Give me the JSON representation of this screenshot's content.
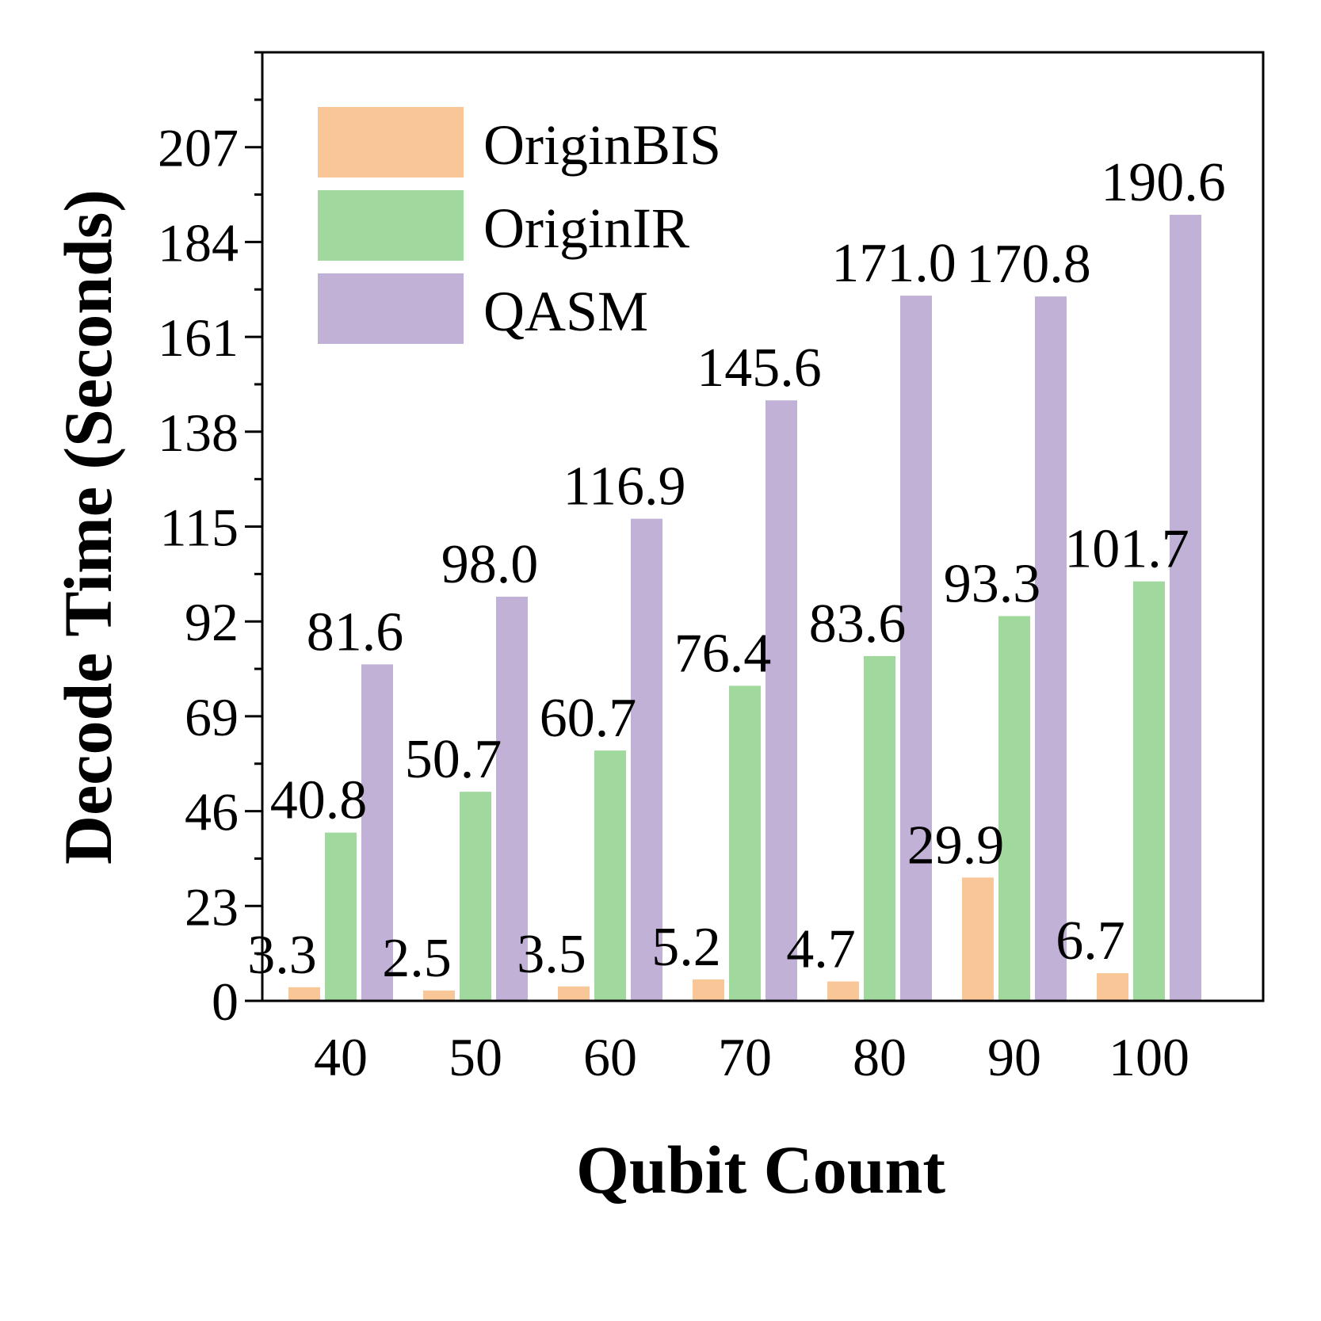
{
  "chart_data": {
    "type": "bar",
    "title": "",
    "xlabel": "Qubit Count",
    "ylabel": "Decode Time (Seconds)",
    "categories": [
      "40",
      "50",
      "60",
      "70",
      "80",
      "90",
      "100"
    ],
    "ylim": [
      0,
      230
    ],
    "yticks": [
      0,
      23,
      46,
      69,
      92,
      115,
      138,
      161,
      184,
      207
    ],
    "minor_tick_step": 11.5,
    "grid": false,
    "legend_position": "top-left",
    "series": [
      {
        "name": "OriginBIS",
        "color": "#f9c797",
        "values": [
          3.3,
          2.5,
          3.5,
          5.2,
          4.7,
          29.9,
          6.7
        ],
        "labels": [
          "3.3",
          "2.5",
          "3.5",
          "5.2",
          "4.7",
          "29.9",
          "6.7"
        ]
      },
      {
        "name": "OriginIR",
        "color": "#a0d89d",
        "values": [
          40.8,
          50.7,
          60.7,
          76.4,
          83.6,
          93.3,
          101.7
        ],
        "labels": [
          "40.8",
          "50.7",
          "60.7",
          "76.4",
          "83.6",
          "93.3",
          "101.7"
        ]
      },
      {
        "name": "QASM",
        "color": "#c2b1d7",
        "values": [
          81.6,
          98.0,
          116.9,
          145.6,
          171.0,
          170.8,
          190.6
        ],
        "labels": [
          "81.6",
          "98.0",
          "116.9",
          "145.6",
          "171.0",
          "170.8",
          "190.6"
        ]
      }
    ]
  }
}
